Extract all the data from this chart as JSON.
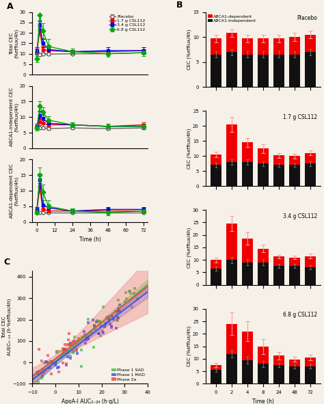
{
  "panel_A": {
    "time_points": [
      0,
      2,
      4,
      8,
      24,
      48,
      72
    ],
    "total_CEC": {
      "placebo": {
        "mean": [
          10.5,
          9.5,
          10.0,
          9.8,
          10.0,
          10.0,
          10.5
        ],
        "err": [
          0.5,
          0.5,
          0.5,
          0.5,
          0.5,
          0.5,
          0.5
        ]
      },
      "csl_1_7": {
        "mean": [
          11.0,
          21.0,
          12.0,
          11.5,
          11.0,
          11.0,
          11.5
        ],
        "err": [
          1.5,
          2.0,
          1.5,
          1.5,
          1.0,
          1.0,
          1.5
        ]
      },
      "csl_3_4": {
        "mean": [
          11.5,
          24.0,
          15.0,
          12.0,
          11.0,
          11.5,
          11.5
        ],
        "err": [
          1.5,
          2.0,
          2.0,
          2.0,
          1.0,
          1.5,
          1.5
        ]
      },
      "csl_6_8": {
        "mean": [
          7.5,
          28.5,
          21.0,
          13.5,
          11.0,
          10.0,
          10.5
        ],
        "err": [
          1.5,
          3.0,
          3.5,
          3.5,
          1.5,
          1.5,
          1.5
        ]
      }
    },
    "abca1_indep_CEC": {
      "placebo": {
        "mean": [
          6.5,
          6.5,
          6.5,
          6.3,
          6.5,
          6.3,
          6.5
        ],
        "err": [
          0.4,
          0.4,
          0.4,
          0.4,
          0.4,
          0.4,
          0.4
        ]
      },
      "csl_1_7": {
        "mean": [
          7.0,
          8.5,
          8.0,
          7.5,
          7.5,
          7.0,
          7.5
        ],
        "err": [
          0.8,
          1.0,
          1.0,
          1.0,
          0.8,
          0.8,
          0.8
        ]
      },
      "csl_3_4": {
        "mean": [
          7.0,
          10.5,
          9.5,
          8.0,
          7.5,
          7.0,
          7.0
        ],
        "err": [
          0.8,
          1.2,
          1.2,
          1.0,
          0.8,
          0.8,
          0.8
        ]
      },
      "csl_6_8": {
        "mean": [
          6.5,
          13.5,
          11.5,
          9.0,
          7.5,
          7.0,
          7.0
        ],
        "err": [
          0.8,
          1.5,
          1.5,
          1.2,
          0.8,
          0.8,
          0.8
        ]
      }
    },
    "abca1_dep_CEC": {
      "placebo": {
        "mean": [
          3.0,
          3.0,
          3.0,
          3.0,
          3.0,
          3.0,
          3.0
        ],
        "err": [
          0.3,
          0.3,
          0.3,
          0.3,
          0.3,
          0.3,
          0.3
        ]
      },
      "csl_1_7": {
        "mean": [
          3.5,
          11.0,
          4.0,
          3.5,
          3.5,
          3.5,
          3.5
        ],
        "err": [
          0.6,
          1.5,
          1.0,
          0.8,
          0.6,
          0.6,
          0.6
        ]
      },
      "csl_3_4": {
        "mean": [
          4.0,
          13.5,
          5.5,
          4.5,
          3.5,
          4.0,
          4.0
        ],
        "err": [
          0.8,
          2.0,
          1.5,
          1.2,
          0.8,
          0.8,
          0.8
        ]
      },
      "csl_6_8": {
        "mean": [
          3.0,
          15.0,
          9.5,
          5.0,
          3.5,
          3.0,
          3.5
        ],
        "err": [
          0.5,
          2.5,
          2.5,
          2.0,
          0.8,
          0.8,
          0.8
        ]
      }
    },
    "ylim_total": [
      0,
      30
    ],
    "ylim_indep": [
      0,
      20
    ],
    "ylim_dep": [
      0,
      20
    ],
    "yticks_total": [
      0,
      5,
      10,
      15,
      20,
      25,
      30
    ],
    "yticks_indep": [
      0,
      5,
      10,
      15,
      20
    ],
    "yticks_dep": [
      0,
      5,
      10,
      15,
      20
    ]
  },
  "panel_B": {
    "time_points": [
      0,
      2,
      4,
      8,
      24,
      48,
      72
    ],
    "abca1_dep": {
      "placebo": [
        3.2,
        3.8,
        3.2,
        3.2,
        3.2,
        3.5,
        3.5
      ],
      "csl_1_7": [
        3.5,
        12.5,
        6.5,
        5.0,
        3.2,
        3.0,
        3.5
      ],
      "csl_3_4": [
        3.5,
        14.5,
        9.5,
        5.5,
        3.8,
        3.5,
        4.5
      ],
      "csl_6_8": [
        2.0,
        12.0,
        11.5,
        7.0,
        3.8,
        2.8,
        3.5
      ]
    },
    "abca1_indep": {
      "placebo": [
        6.5,
        7.0,
        6.5,
        6.5,
        6.5,
        6.5,
        7.0
      ],
      "csl_1_7": [
        7.0,
        8.0,
        8.0,
        7.5,
        7.0,
        7.0,
        7.5
      ],
      "csl_3_4": [
        6.5,
        10.0,
        9.0,
        9.0,
        7.5,
        7.5,
        7.0
      ],
      "csl_6_8": [
        5.5,
        12.0,
        9.5,
        8.0,
        7.5,
        7.0,
        7.0
      ]
    },
    "abca1_dep_err": {
      "placebo": [
        0.8,
        0.8,
        0.8,
        0.8,
        0.8,
        0.8,
        0.8
      ],
      "csl_1_7": [
        1.0,
        2.5,
        1.5,
        1.5,
        0.8,
        0.8,
        0.8
      ],
      "csl_3_4": [
        1.0,
        3.0,
        2.5,
        1.5,
        0.8,
        0.8,
        1.0
      ],
      "csl_6_8": [
        0.8,
        4.5,
        4.0,
        3.0,
        1.5,
        1.0,
        1.0
      ]
    },
    "abca1_indep_err": {
      "placebo": [
        0.6,
        0.6,
        0.6,
        0.6,
        0.6,
        0.6,
        0.6
      ],
      "csl_1_7": [
        0.8,
        1.0,
        1.0,
        0.8,
        0.6,
        0.6,
        0.8
      ],
      "csl_3_4": [
        0.8,
        1.2,
        1.2,
        1.2,
        0.8,
        0.8,
        0.8
      ],
      "csl_6_8": [
        0.6,
        1.5,
        1.5,
        1.2,
        0.8,
        0.8,
        0.8
      ]
    },
    "ylim_placebo": [
      0,
      15
    ],
    "yticks_placebo": [
      0,
      5,
      10,
      15
    ],
    "ylim_csl17": [
      0,
      25
    ],
    "yticks_csl17": [
      0,
      5,
      10,
      15,
      20,
      25
    ],
    "ylim_csl34": [
      0,
      30
    ],
    "yticks_csl34": [
      0,
      5,
      10,
      15,
      20,
      25,
      30
    ],
    "ylim_csl68": [
      0,
      30
    ],
    "yticks_csl68": [
      0,
      5,
      10,
      15,
      20,
      25,
      30
    ]
  },
  "panel_C": {
    "xlim": [
      -10,
      40
    ],
    "ylim": [
      -100,
      430
    ],
    "xticks": [
      -10,
      0,
      10,
      20,
      30,
      40
    ],
    "yticks": [
      -100,
      0,
      100,
      200,
      300,
      400
    ]
  },
  "colors": {
    "placebo": "#666666",
    "csl_1_7": "#EE0000",
    "csl_3_4": "#0000EE",
    "csl_6_8": "#00AA00",
    "abca1_dep": "#EE0000",
    "abca1_indep": "#111111",
    "sad_color": "#44BB44",
    "mad_color": "#4444EE",
    "phase2a_color": "#EE4444",
    "bg_color": "#F5F0E8"
  }
}
